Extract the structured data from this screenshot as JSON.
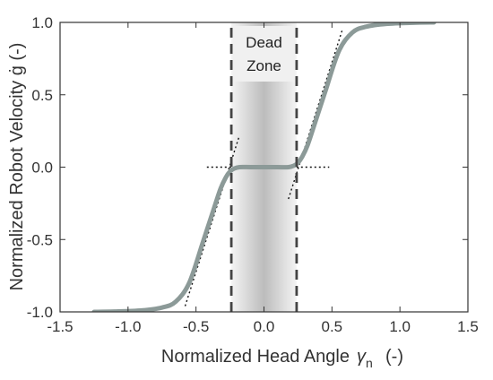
{
  "chart_data": {
    "type": "line",
    "xlabel": "Normalized Head Angle",
    "xlabel_symbol": "γ",
    "xlabel_subscript": "n",
    "xlabel_unit": "(-)",
    "ylabel": "Normalized Robot Velocity ġ  (-)",
    "xlim": [
      -1.5,
      1.5
    ],
    "ylim": [
      -1.0,
      1.0
    ],
    "xticks": [
      -1.5,
      -1.0,
      -0.5,
      0.0,
      0.5,
      1.0,
      1.5
    ],
    "xtick_labels": [
      "-1.5",
      "-1.0",
      "-0.5",
      "0.0",
      "0.5",
      "1.0",
      "1.5"
    ],
    "yticks": [
      -1.0,
      -0.5,
      0.0,
      0.5,
      1.0
    ],
    "ytick_labels": [
      "-1.0",
      "-0.5",
      "0.0",
      "0.5",
      "1.0"
    ],
    "grid": false,
    "annotation": {
      "line1": "Dead",
      "line2": "Zone",
      "x_range": [
        -0.24,
        0.24
      ]
    },
    "series": [
      {
        "style": "thick gray curve",
        "color": "#8c9a98",
        "x": [
          -1.25,
          -1.1,
          -0.9,
          -0.75,
          -0.65,
          -0.55,
          -0.45,
          -0.38,
          -0.32,
          -0.28,
          -0.25,
          -0.22,
          -0.18,
          -0.1,
          0.0,
          0.1,
          0.18,
          0.22,
          0.25,
          0.28,
          0.32,
          0.38,
          0.45,
          0.55,
          0.65,
          0.75,
          0.9,
          1.1,
          1.25
        ],
        "y": [
          -1.0,
          -0.998,
          -0.99,
          -0.97,
          -0.93,
          -0.8,
          -0.52,
          -0.32,
          -0.15,
          -0.07,
          -0.03,
          -0.01,
          0.0,
          0.0,
          0.0,
          0.0,
          0.0,
          0.01,
          0.03,
          0.07,
          0.15,
          0.32,
          0.52,
          0.8,
          0.93,
          0.97,
          0.99,
          0.998,
          1.0
        ]
      }
    ],
    "reference_lines": [
      {
        "style": "dotted",
        "x": [
          -0.42,
          0.48
        ],
        "y": [
          0.0,
          0.0
        ]
      },
      {
        "style": "dotted",
        "x": [
          -0.58,
          -0.18
        ],
        "y": [
          -0.96,
          0.22
        ]
      },
      {
        "style": "dotted",
        "x": [
          0.18,
          0.58
        ],
        "y": [
          -0.22,
          0.96
        ]
      },
      {
        "style": "dashed",
        "x": [
          -0.24,
          -0.24
        ],
        "y": [
          -1.0,
          1.0
        ]
      },
      {
        "style": "dashed",
        "x": [
          0.24,
          0.24
        ],
        "y": [
          -1.0,
          1.0
        ]
      }
    ],
    "colors": {
      "curve": "#8c9a98",
      "axis": "#333333",
      "dashed": "#444444",
      "dotted": "#111111",
      "zone_edge": "#f2f2f2",
      "zone_mid": "#bdbdbd"
    }
  }
}
